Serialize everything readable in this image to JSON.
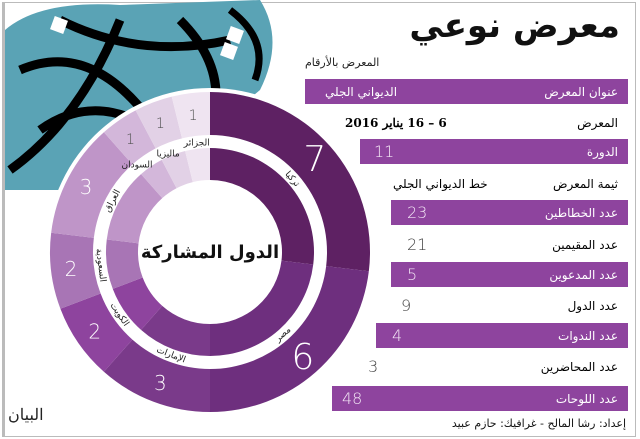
{
  "header": {
    "title": "معرض نوعي",
    "subtitle": "المعرض بالأرقام"
  },
  "rows": [
    {
      "label": "عنوان المعرض",
      "value": "الديواني الجلي"
    },
    {
      "label": "المعرض",
      "value": "6 – 16 يناير 2016"
    },
    {
      "label": "الدورة",
      "value": "11"
    },
    {
      "label": "ثيمة المعرض",
      "value": "خط الديواني الجلي"
    },
    {
      "label": "عدد الخطاطين",
      "value": "23"
    },
    {
      "label": "عدد المقيمين",
      "value": "21"
    },
    {
      "label": "عدد المدعوين",
      "value": "5"
    },
    {
      "label": "عدد الدول",
      "value": "9"
    },
    {
      "label": "عدد الندوات",
      "value": "4"
    },
    {
      "label": "عدد المحاضرين",
      "value": "3"
    },
    {
      "label": "عدد اللوحات",
      "value": "48"
    }
  ],
  "credit": "إعداد: رشا المالح - غرافيك: حازم عبيد",
  "logo": "البيان",
  "chart_data": {
    "type": "pie",
    "title": "الدول المشاركة",
    "categories": [
      "تركيا",
      "مصر",
      "الإمارات",
      "الكويت",
      "السعودية",
      "العراق",
      "السودان",
      "ماليزيا",
      "الجزائر"
    ],
    "values": [
      7,
      6,
      3,
      2,
      2,
      3,
      1,
      1,
      1
    ],
    "colors": [
      "#5e2163",
      "#6e2f7e",
      "#7a3a8a",
      "#8e449e",
      "#a875b5",
      "#bf95c8",
      "#d3b7da",
      "#e2d1e6",
      "#efe4f1"
    ]
  }
}
